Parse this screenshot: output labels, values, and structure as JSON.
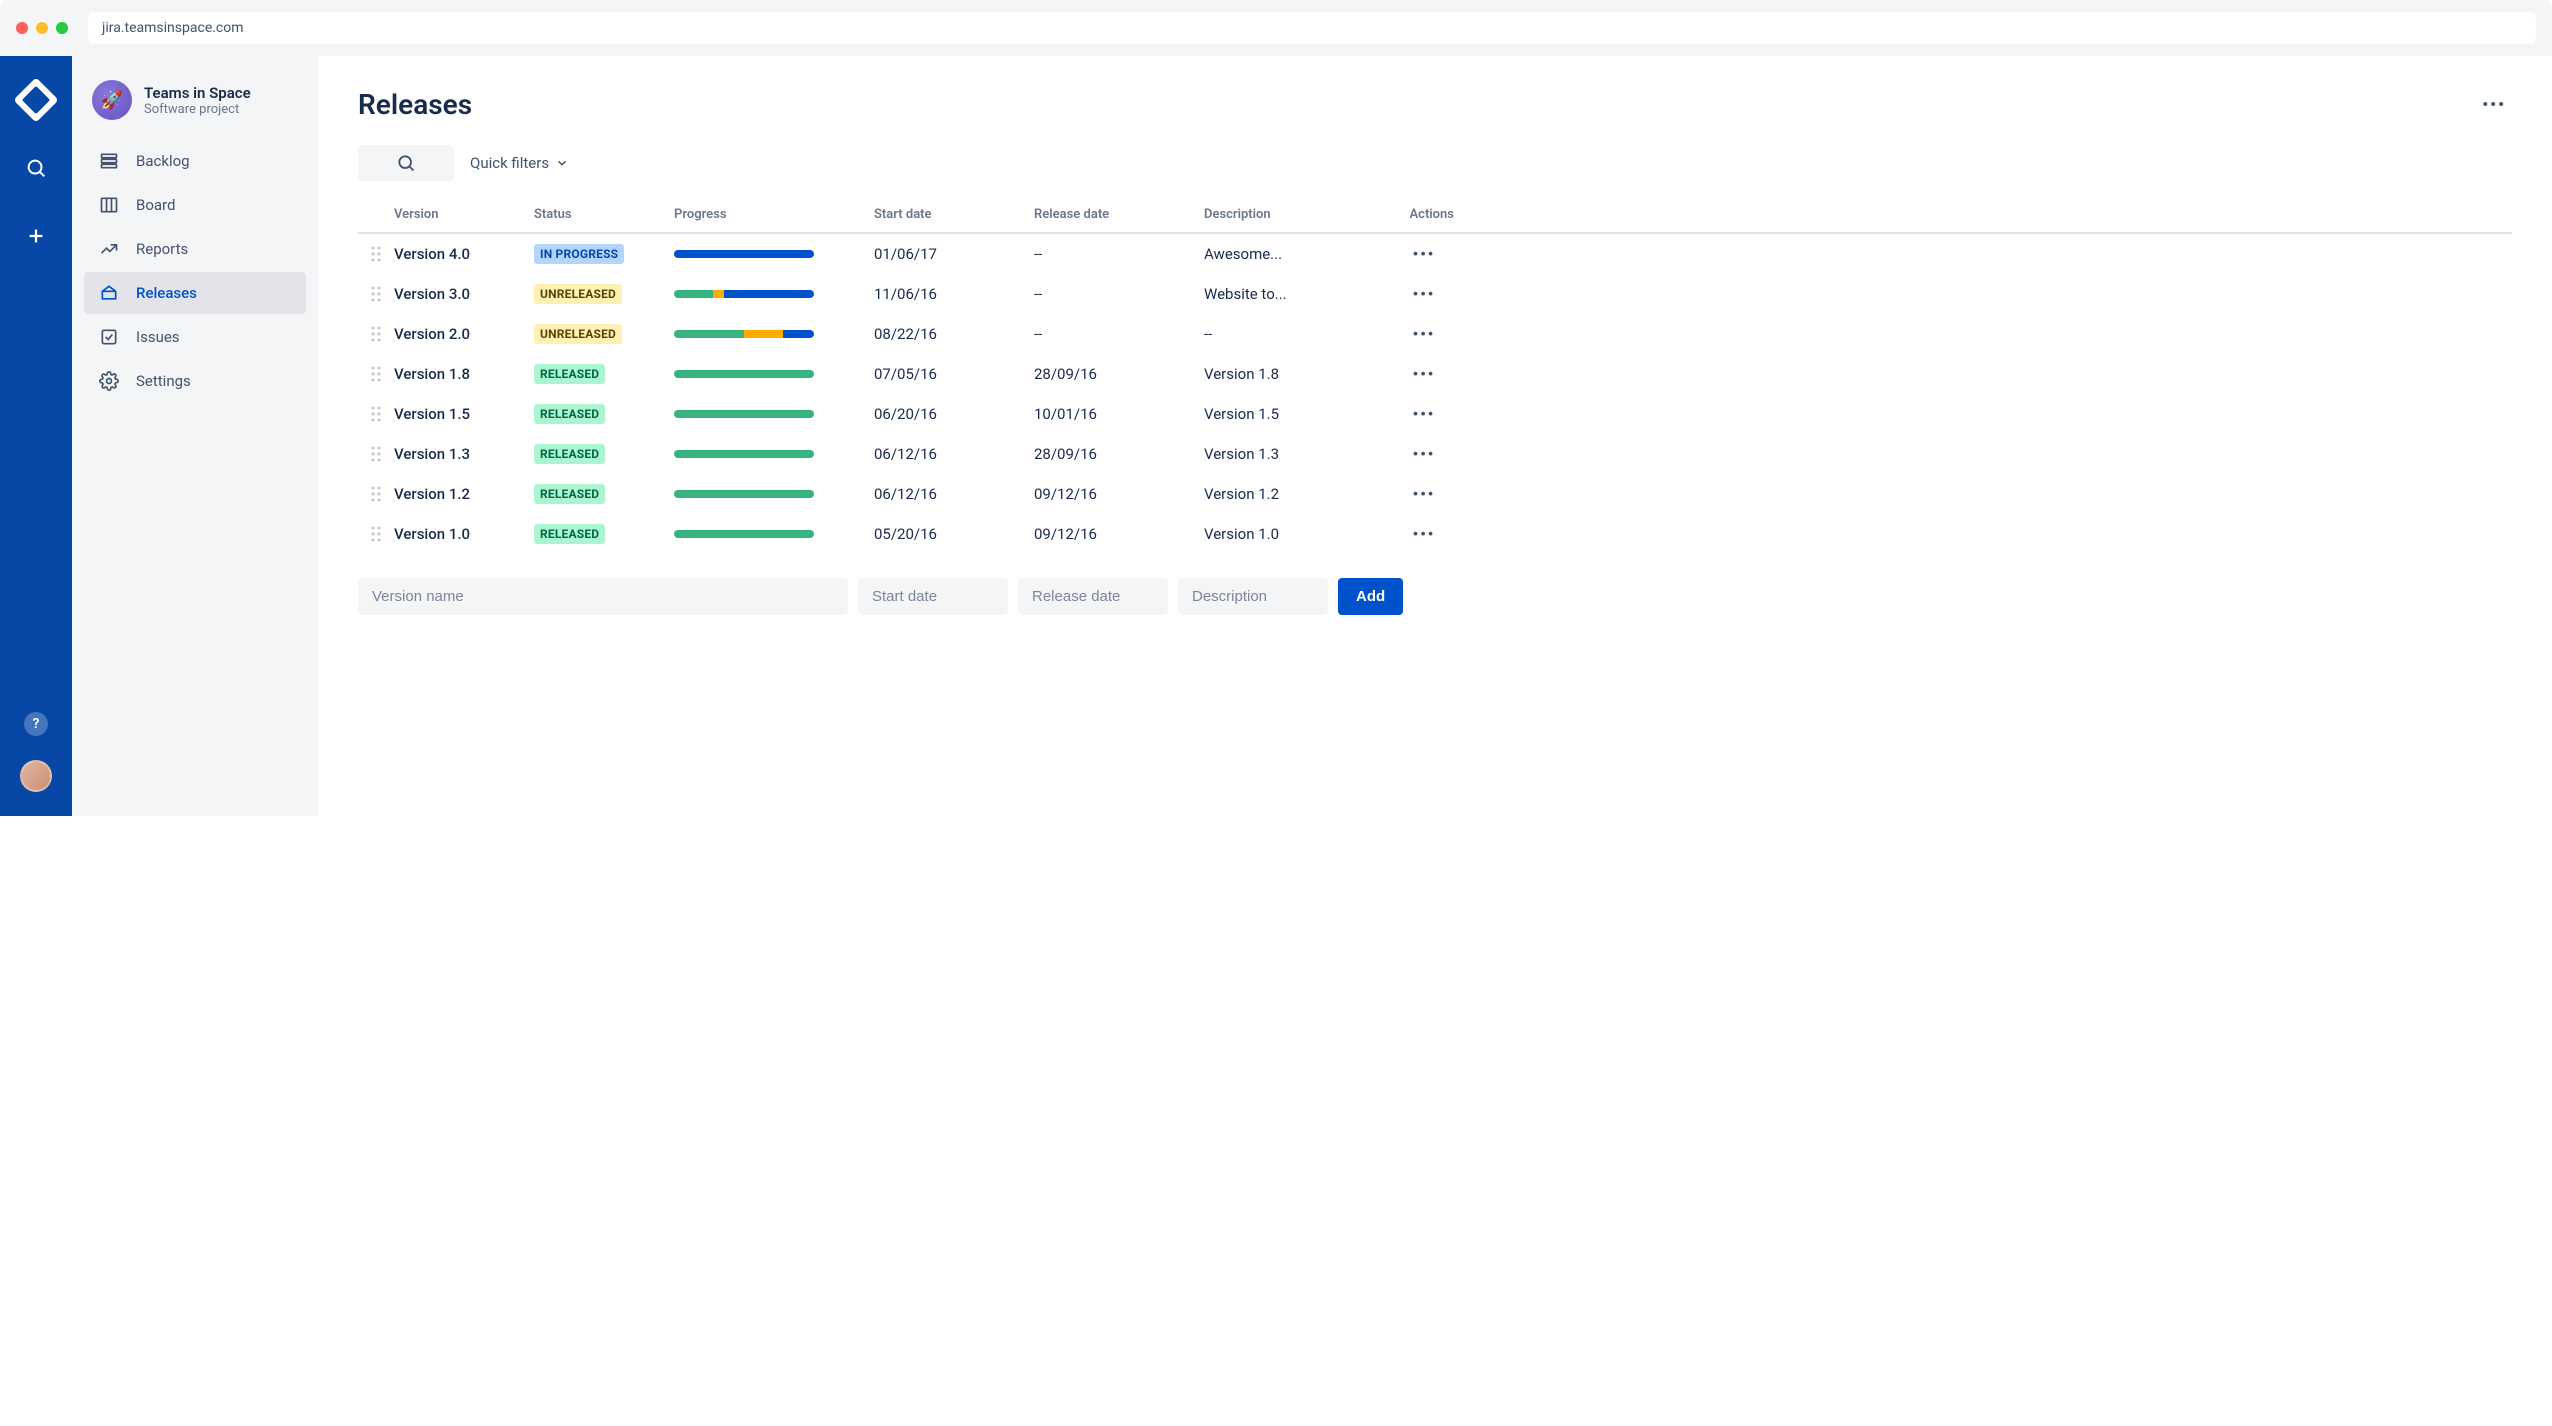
{
  "browser": {
    "url": "jira.teamsinspace.com"
  },
  "project": {
    "name": "Teams in Space",
    "type": "Software project"
  },
  "sidebar": {
    "items": [
      {
        "label": "Backlog",
        "icon": "backlog"
      },
      {
        "label": "Board",
        "icon": "board"
      },
      {
        "label": "Reports",
        "icon": "reports"
      },
      {
        "label": "Releases",
        "icon": "releases",
        "active": true
      },
      {
        "label": "Issues",
        "icon": "issues"
      },
      {
        "label": "Settings",
        "icon": "settings"
      }
    ]
  },
  "page": {
    "title": "Releases",
    "quick_filters_label": "Quick filters"
  },
  "table": {
    "columns": [
      "Version",
      "Status",
      "Progress",
      "Start date",
      "Release date",
      "Description",
      "Actions"
    ],
    "rows": [
      {
        "version": "Version 4.0",
        "status": "IN PROGRESS",
        "status_class": "inprogress",
        "progress": [
          {
            "color": "#0052cc",
            "pct": 100
          }
        ],
        "start": "01/06/17",
        "release": "--",
        "desc": "Awesome..."
      },
      {
        "version": "Version 3.0",
        "status": "UNRELEASED",
        "status_class": "unreleased",
        "progress": [
          {
            "color": "#36b37e",
            "pct": 28
          },
          {
            "color": "#ffab00",
            "pct": 8
          },
          {
            "color": "#0052cc",
            "pct": 64
          }
        ],
        "start": "11/06/16",
        "release": "--",
        "desc": "Website to..."
      },
      {
        "version": "Version 2.0",
        "status": "UNRELEASED",
        "status_class": "unreleased",
        "progress": [
          {
            "color": "#36b37e",
            "pct": 50
          },
          {
            "color": "#ffab00",
            "pct": 28
          },
          {
            "color": "#0052cc",
            "pct": 22
          }
        ],
        "start": "08/22/16",
        "release": "--",
        "desc": "--"
      },
      {
        "version": "Version 1.8",
        "status": "RELEASED",
        "status_class": "released",
        "progress": [
          {
            "color": "#36b37e",
            "pct": 100
          }
        ],
        "start": "07/05/16",
        "release": "28/09/16",
        "desc": "Version 1.8"
      },
      {
        "version": "Version 1.5",
        "status": "RELEASED",
        "status_class": "released",
        "progress": [
          {
            "color": "#36b37e",
            "pct": 100
          }
        ],
        "start": "06/20/16",
        "release": "10/01/16",
        "desc": "Version 1.5"
      },
      {
        "version": "Version 1.3",
        "status": "RELEASED",
        "status_class": "released",
        "progress": [
          {
            "color": "#36b37e",
            "pct": 100
          }
        ],
        "start": "06/12/16",
        "release": "28/09/16",
        "desc": "Version 1.3"
      },
      {
        "version": "Version 1.2",
        "status": "RELEASED",
        "status_class": "released",
        "progress": [
          {
            "color": "#36b37e",
            "pct": 100
          }
        ],
        "start": "06/12/16",
        "release": "09/12/16",
        "desc": "Version 1.2"
      },
      {
        "version": "Version 1.0",
        "status": "RELEASED",
        "status_class": "released",
        "progress": [
          {
            "color": "#36b37e",
            "pct": 100
          }
        ],
        "start": "05/20/16",
        "release": "09/12/16",
        "desc": "Version 1.0"
      }
    ]
  },
  "add_form": {
    "version_placeholder": "Version name",
    "start_placeholder": "Start date",
    "release_placeholder": "Release date",
    "desc_placeholder": "Description",
    "button_label": "Add"
  },
  "colors": {
    "brand_blue": "#0747a6",
    "primary": "#0052cc",
    "sidebar_bg": "#f4f5f7",
    "green": "#36b37e",
    "amber": "#ffab00"
  }
}
